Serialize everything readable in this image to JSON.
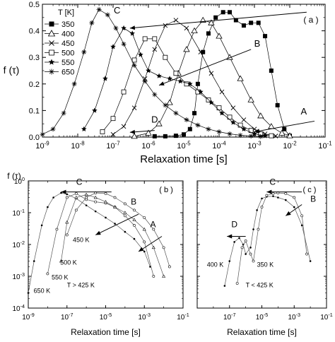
{
  "chart_data": [
    {
      "panel_label": "( a )",
      "type": "line",
      "ylabel": "f (τ)",
      "xlabel": "Relaxation time  [s]",
      "x_scale": "log",
      "xlim": [
        1e-09,
        0.1
      ],
      "ylim": [
        0,
        0.5
      ],
      "x_ticks": [
        {
          "v": 1e-09,
          "label": "10"
        },
        {
          "v": 1e-08,
          "label": "10"
        },
        {
          "v": 1e-07,
          "label": "10"
        },
        {
          "v": 1e-06,
          "label": "10"
        },
        {
          "v": 1e-05,
          "label": "10"
        },
        {
          "v": 0.0001,
          "label": "10"
        },
        {
          "v": 0.001,
          "label": "10"
        },
        {
          "v": 0.01,
          "label": "10"
        },
        {
          "v": 0.1,
          "label": "10"
        }
      ],
      "x_tick_exps": [
        "-9",
        "-8",
        "-7",
        "-6",
        "-5",
        "-4",
        "-3",
        "-2",
        "-1"
      ],
      "y_ticks": [
        {
          "v": 0.0,
          "label": "0.0"
        },
        {
          "v": 0.1,
          "label": "0.1"
        },
        {
          "v": 0.2,
          "label": "0.2"
        },
        {
          "v": 0.3,
          "label": "0.3"
        },
        {
          "v": 0.4,
          "label": "0.4"
        },
        {
          "v": 0.5,
          "label": "0.5"
        }
      ],
      "legend_title": "T [K]",
      "legend_position": "top-left",
      "series": [
        {
          "name": "350",
          "marker": "square-filled",
          "x": [
            1.5e-06,
            3e-06,
            6e-06,
            1e-05,
            1.5e-05,
            2e-05,
            2.5e-05,
            3.5e-05,
            5e-05,
            8e-05,
            0.00013,
            0.0002,
            0.0003,
            0.0005,
            0.0008,
            0.0013,
            0.002,
            0.003,
            0.0045,
            0.007,
            0.01
          ],
          "y": [
            0.003,
            0.003,
            0.005,
            0.01,
            0.03,
            0.09,
            0.2,
            0.32,
            0.39,
            0.45,
            0.47,
            0.47,
            0.44,
            0.42,
            0.43,
            0.43,
            0.38,
            0.25,
            0.12,
            0.03,
            0.005
          ]
        },
        {
          "name": "400",
          "marker": "triangle-open",
          "x": [
            4e-07,
            1e-06,
            2e-06,
            4e-06,
            7e-06,
            1.2e-05,
            2e-05,
            3.5e-05,
            6e-05,
            0.0001,
            0.0002,
            0.0004,
            0.0008,
            0.0015,
            0.003,
            0.006,
            0.01
          ],
          "y": [
            0.003,
            0.015,
            0.05,
            0.13,
            0.24,
            0.33,
            0.4,
            0.44,
            0.43,
            0.38,
            0.3,
            0.22,
            0.14,
            0.08,
            0.04,
            0.015,
            0.005
          ]
        },
        {
          "name": "450",
          "marker": "x",
          "x": [
            1e-07,
            2e-07,
            4e-07,
            8e-07,
            1.5e-06,
            3e-06,
            6e-06,
            1.2e-05,
            3e-05,
            6e-05,
            0.00012,
            0.00025,
            0.0005,
            0.001,
            0.002,
            0.004
          ],
          "y": [
            0.01,
            0.04,
            0.11,
            0.22,
            0.33,
            0.42,
            0.44,
            0.41,
            0.32,
            0.24,
            0.17,
            0.11,
            0.065,
            0.03,
            0.012,
            0.004
          ]
        },
        {
          "name": "500",
          "marker": "square-open",
          "x": [
            5e-08,
            1e-07,
            2e-07,
            4e-07,
            8e-07,
            1.5e-06,
            3e-06,
            6e-06,
            1.2e-05,
            2.5e-05,
            5e-05,
            0.0001,
            0.0002,
            0.0004,
            0.0008,
            0.0015,
            0.003
          ],
          "y": [
            0.02,
            0.07,
            0.17,
            0.29,
            0.37,
            0.37,
            0.3,
            0.24,
            0.2,
            0.17,
            0.14,
            0.11,
            0.075,
            0.045,
            0.025,
            0.012,
            0.005
          ]
        },
        {
          "name": "550",
          "marker": "star-filled",
          "x": [
            1.5e-08,
            3e-08,
            6e-08,
            1e-07,
            2e-07,
            3.5e-07,
            6e-07,
            1e-06,
            2e-06,
            4e-06,
            8e-06,
            1.5e-05,
            3e-05,
            6e-05,
            0.00012,
            0.00025,
            0.0005,
            0.001,
            0.002
          ],
          "y": [
            0.03,
            0.1,
            0.22,
            0.34,
            0.41,
            0.39,
            0.31,
            0.25,
            0.23,
            0.22,
            0.21,
            0.2,
            0.17,
            0.13,
            0.09,
            0.055,
            0.03,
            0.012,
            0.004
          ]
        },
        {
          "name": "650",
          "marker": "asterisk",
          "x": [
            1e-09,
            2e-09,
            4e-09,
            8e-09,
            1.5e-08,
            2.5e-08,
            4e-08,
            7e-08,
            1.2e-07,
            2e-07,
            4e-07,
            8e-07,
            1.5e-06,
            3e-06,
            6e-06,
            1.2e-05,
            2.5e-05,
            5e-05,
            0.0001,
            0.0002,
            0.0004,
            0.0008,
            0.0015
          ],
          "y": [
            0.01,
            0.03,
            0.09,
            0.2,
            0.32,
            0.43,
            0.48,
            0.46,
            0.41,
            0.35,
            0.27,
            0.21,
            0.16,
            0.12,
            0.09,
            0.065,
            0.045,
            0.03,
            0.02,
            0.012,
            0.007,
            0.004,
            0.002
          ]
        }
      ],
      "annotations": [
        {
          "text": "C",
          "x": 1.3e-07,
          "y": 0.465
        },
        {
          "text": "B",
          "x": 0.0012,
          "y": 0.34
        },
        {
          "text": "A",
          "x": 0.025,
          "y": 0.085
        },
        {
          "text": "D",
          "x": 1.5e-06,
          "y": 0.055
        }
      ],
      "arrows": [
        {
          "from": [
            0.03,
            0.47
          ],
          "to": [
            3e-07,
            0.41
          ]
        },
        {
          "from": [
            0.0008,
            0.33
          ],
          "to": [
            2e-06,
            0.195
          ]
        },
        {
          "from": [
            0.05,
            0.06
          ],
          "to": [
            0.001,
            0.02
          ]
        },
        {
          "from": [
            1.5e-06,
            0.025
          ],
          "to": [
            3e-07,
            0.018
          ]
        }
      ]
    },
    {
      "panel_label": "( b )",
      "type": "line",
      "ylabel": "f (τ)",
      "xlabel": "Relaxation time [s]",
      "x_scale": "log",
      "y_scale": "log",
      "xlim": [
        1e-09,
        0.1
      ],
      "ylim": [
        0.0001,
        1
      ],
      "x_ticks": [
        {
          "v": 1e-09,
          "label": "10"
        },
        {
          "v": 1e-07,
          "label": "10"
        },
        {
          "v": 1e-05,
          "label": "10"
        },
        {
          "v": 0.001,
          "label": "10"
        },
        {
          "v": 0.1,
          "label": "10"
        }
      ],
      "x_tick_exps": [
        "-9",
        "-7",
        "-5",
        "-3",
        "-1"
      ],
      "y_ticks": [
        {
          "v": 0.0001,
          "label": "10"
        },
        {
          "v": 0.001,
          "label": "10"
        },
        {
          "v": 0.01,
          "label": "10"
        },
        {
          "v": 0.1,
          "label": "10"
        },
        {
          "v": 1,
          "label": "10"
        }
      ],
      "y_tick_exps": [
        "-4",
        "-3",
        "-2",
        "-1",
        "0"
      ],
      "series": [
        {
          "name": "650 K",
          "x": [
            1e-09,
            2e-09,
            5e-09,
            1e-08,
            2e-08,
            5e-08,
            1e-07,
            3e-07,
            1e-06,
            3e-06,
            1e-05,
            3e-05,
            0.0001,
            0.0003,
            0.001,
            0.002
          ],
          "y": [
            0.0003,
            0.003,
            0.04,
            0.15,
            0.3,
            0.42,
            0.38,
            0.28,
            0.17,
            0.11,
            0.07,
            0.045,
            0.025,
            0.015,
            0.006,
            0.002
          ]
        },
        {
          "name": "550 K",
          "x": [
            1e-08,
            3e-08,
            1e-07,
            3e-07,
            1e-06,
            3e-06,
            1e-05,
            3e-05,
            0.0001,
            0.0003,
            0.001,
            0.003
          ],
          "y": [
            0.0012,
            0.03,
            0.3,
            0.4,
            0.26,
            0.22,
            0.2,
            0.15,
            0.08,
            0.04,
            0.012,
            0.001
          ]
        },
        {
          "name": "500 K",
          "x": [
            5e-08,
            1e-07,
            3e-07,
            1e-06,
            3e-06,
            1e-05,
            3e-05,
            0.0001,
            0.0003,
            0.001,
            0.003,
            0.01
          ],
          "y": [
            0.003,
            0.05,
            0.3,
            0.37,
            0.3,
            0.22,
            0.15,
            0.1,
            0.06,
            0.03,
            0.008,
            0.001
          ]
        },
        {
          "name": "450 K",
          "x": [
            1e-07,
            3e-07,
            1e-06,
            3e-06,
            1e-05,
            3e-05,
            0.0001,
            0.0003,
            0.001,
            0.003,
            0.01,
            0.02
          ],
          "y": [
            0.02,
            0.12,
            0.3,
            0.42,
            0.4,
            0.3,
            0.19,
            0.12,
            0.07,
            0.03,
            0.008,
            0.002
          ]
        }
      ],
      "annotations": [
        {
          "text": "C",
          "x": 3e-07,
          "y": 0.75
        },
        {
          "text": "B",
          "x": 0.0002,
          "y": 0.18
        },
        {
          "text": "A",
          "x": 0.002,
          "y": 0.035
        },
        {
          "text": "450 K",
          "x": 2e-07,
          "y": 0.012
        },
        {
          "text": "500 K",
          "x": 4.5e-08,
          "y": 0.0023
        },
        {
          "text": "550 K",
          "x": 1.6e-08,
          "y": 0.0008
        },
        {
          "text": "650 K",
          "x": 1.9e-09,
          "y": 0.0003
        },
        {
          "text": "T > 425 K",
          "x": 1e-07,
          "y": 0.00045
        }
      ]
    },
    {
      "panel_label": "( c )",
      "type": "line",
      "xlabel": "Relaxation time [s]",
      "x_scale": "log",
      "y_scale": "log",
      "xlim": [
        1e-09,
        0.1
      ],
      "ylim": [
        0.0001,
        1
      ],
      "x_ticks": [
        {
          "v": 1e-07,
          "label": "10"
        },
        {
          "v": 1e-05,
          "label": "10"
        },
        {
          "v": 0.001,
          "label": "10"
        },
        {
          "v": 0.1,
          "label": "10"
        }
      ],
      "x_tick_exps": [
        "-7",
        "-5",
        "-3",
        "-1"
      ],
      "series": [
        {
          "name": "400 K",
          "x": [
            5e-08,
            1e-07,
            2e-07,
            4e-07,
            7e-07,
            1e-06,
            2e-06,
            3e-06,
            5e-06,
            1e-05,
            2e-05,
            5e-05,
            0.0001,
            0.0003,
            0.001,
            0.003,
            0.01
          ],
          "y": [
            0.0005,
            0.003,
            0.012,
            0.016,
            0.01,
            0.005,
            0.008,
            0.03,
            0.12,
            0.28,
            0.32,
            0.33,
            0.3,
            0.25,
            0.15,
            0.04,
            0.003
          ]
        },
        {
          "name": "350 K",
          "x": [
            3e-07,
            6e-07,
            1e-06,
            2e-06,
            3e-06,
            6e-06,
            1e-05,
            2e-05,
            5e-05,
            0.0001,
            0.0003,
            0.001,
            0.003,
            0.006
          ],
          "y": [
            0.0006,
            0.008,
            0.013,
            0.005,
            0.003,
            0.03,
            0.15,
            0.35,
            0.4,
            0.42,
            0.4,
            0.3,
            0.08,
            0.005
          ]
        }
      ],
      "annotations": [
        {
          "text": "C",
          "x": 3e-05,
          "y": 0.75
        },
        {
          "text": "B",
          "x": 0.01,
          "y": 0.22
        },
        {
          "text": "D",
          "x": 1.3e-07,
          "y": 0.035
        },
        {
          "text": "400 K",
          "x": 4e-09,
          "y": 0.002
        },
        {
          "text": "350 K",
          "x": 5e-06,
          "y": 0.002
        },
        {
          "text": "T < 425 K",
          "x": 1e-06,
          "y": 0.00045
        }
      ]
    }
  ]
}
